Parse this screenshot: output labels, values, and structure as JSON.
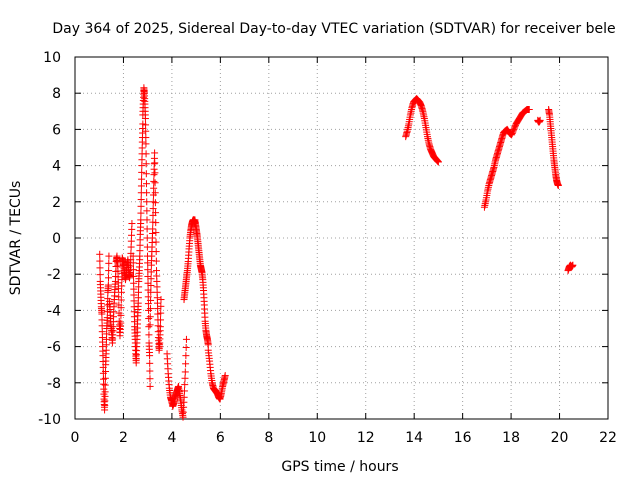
{
  "chart_data": {
    "type": "scatter",
    "title": "Day 364 of 2025, Sidereal Day-to-day VTEC variation (SDTVAR) for receiver bele",
    "xlabel": "GPS time / hours",
    "ylabel": "SDTVAR / TECUs",
    "xlim": [
      0,
      22
    ],
    "ylim": [
      -10,
      10
    ],
    "xticks": [
      0,
      2,
      4,
      6,
      8,
      10,
      12,
      14,
      16,
      18,
      20,
      22
    ],
    "yticks": [
      -10,
      -8,
      -6,
      -4,
      -2,
      0,
      2,
      4,
      6,
      8,
      10
    ],
    "grid": true,
    "marker": "+",
    "colors": {
      "points": "#ff0000",
      "grid": "#a0a0a0",
      "axes": "#000000"
    },
    "series": [
      {
        "name": "SDTVAR",
        "segments": [
          {
            "x_start": 1.02,
            "x_end": 1.4,
            "values": [
              -0.9,
              -2.4,
              -3.1,
              -3.8,
              -4.2,
              -5.5,
              -6.5,
              -7.8,
              -8.9,
              -9.5,
              -8.5,
              -7.0,
              -6.2,
              -5.0,
              -4.4,
              -3.0,
              -2.6,
              -1.0
            ]
          },
          {
            "x_start": 1.42,
            "x_end": 1.95,
            "values": [
              -3.5,
              -4.1,
              -4.8,
              -5.2,
              -5.8,
              -4.9,
              -3.8,
              -3.0,
              -2.4,
              -1.3,
              -1.0,
              -1.5,
              -2.8,
              -4.6,
              -5.4,
              -4.7,
              -3.0,
              -1.6
            ]
          },
          {
            "x_start": 1.95,
            "x_end": 2.35,
            "values": [
              -1.1,
              -1.3,
              -1.6,
              -2.0,
              -2.3,
              -2.0,
              -1.5,
              -1.2,
              -1.8,
              -2.2,
              -1.9,
              -0.5,
              0.8
            ]
          },
          {
            "x_start": 2.4,
            "x_end": 2.8,
            "values": [
              -1.0,
              -2.5,
              -3.8,
              -4.9,
              -5.6,
              -6.4,
              -6.9,
              -6.0,
              -5.2,
              -4.3,
              -3.6,
              -2.4,
              -1.8,
              -1.0,
              0.2,
              1.0,
              2.5,
              4.0,
              5.3,
              6.3
            ]
          },
          {
            "x_start": 2.8,
            "x_end": 3.1,
            "values": [
              6.8,
              7.6,
              8.3,
              8.0,
              7.4,
              6.6,
              5.2,
              3.0,
              1.0,
              -1.0,
              -2.5,
              -4.0,
              -5.8,
              -6.5,
              -8.2
            ]
          },
          {
            "x_start": 3.1,
            "x_end": 3.55,
            "values": [
              -4.8,
              -3.0,
              -1.5,
              -0.5,
              0.5,
              2.0,
              3.5,
              4.7,
              2.5,
              0.3,
              -1.8,
              -3.0,
              -4.2,
              -5.5,
              -6.2,
              -5.8,
              -4.9,
              -3.4
            ]
          },
          {
            "x_start": 3.8,
            "x_end": 4.6,
            "values": [
              -6.4,
              -7.5,
              -8.3,
              -8.8,
              -9.0,
              -9.3,
              -9.1,
              -8.8,
              -8.6,
              -8.4,
              -8.2,
              -8.6,
              -9.0,
              -9.5,
              -9.9,
              -8.8,
              -7.4,
              -5.6
            ]
          },
          {
            "x_start": 4.5,
            "x_end": 4.95,
            "values": [
              -3.4,
              -3.0,
              -2.6,
              -2.2,
              -1.8,
              -1.3,
              -0.6,
              0.0,
              0.4,
              0.7,
              0.9,
              1.0,
              1.0,
              0.8
            ]
          },
          {
            "x_start": 4.95,
            "x_end": 5.5,
            "values": [
              1.0,
              0.7,
              0.4,
              0.1,
              -0.3,
              -0.7,
              -1.1,
              -1.5,
              -1.7,
              -1.9,
              -2.3,
              -2.9,
              -3.7,
              -4.6,
              -5.1,
              -5.4,
              -5.6,
              -5.9
            ]
          },
          {
            "x_start": 5.5,
            "x_end": 6.2,
            "values": [
              -6.2,
              -6.8,
              -7.5,
              -8.0,
              -8.3,
              -8.4,
              -8.5,
              -8.6,
              -8.8,
              -8.9,
              -8.6,
              -8.2,
              -7.9,
              -7.6
            ]
          },
          {
            "x_start": 13.65,
            "x_end": 15.0,
            "values": [
              5.6,
              5.9,
              6.3,
              6.8,
              7.2,
              7.5,
              7.6,
              7.7,
              7.6,
              7.5,
              7.3,
              7.0,
              6.6,
              6.1,
              5.6,
              5.2,
              4.9,
              4.7,
              4.5,
              4.4,
              4.3,
              4.2
            ]
          },
          {
            "x_start": 16.9,
            "x_end": 17.75,
            "values": [
              1.7,
              2.1,
              2.6,
              3.0,
              3.3,
              3.6,
              3.9,
              4.3,
              4.6,
              4.9,
              5.2,
              5.5,
              5.8,
              5.9
            ]
          },
          {
            "x_start": 17.75,
            "x_end": 18.75,
            "values": [
              5.9,
              6.0,
              5.8,
              5.7,
              6.0,
              6.3,
              6.5,
              6.7,
              6.9,
              7.0,
              7.1,
              7.1
            ]
          },
          {
            "x_start": 19.1,
            "x_end": 19.2,
            "values": [
              6.5,
              6.4,
              6.5
            ]
          },
          {
            "x_start": 19.55,
            "x_end": 19.95,
            "values": [
              7.1,
              6.8,
              6.3,
              5.8,
              5.3,
              4.8,
              4.3,
              3.9,
              3.5,
              3.2,
              3.0,
              2.9
            ]
          },
          {
            "x_start": 20.35,
            "x_end": 20.55,
            "values": [
              -1.8,
              -1.6,
              -1.5,
              -1.6,
              -1.5
            ]
          }
        ]
      }
    ]
  }
}
